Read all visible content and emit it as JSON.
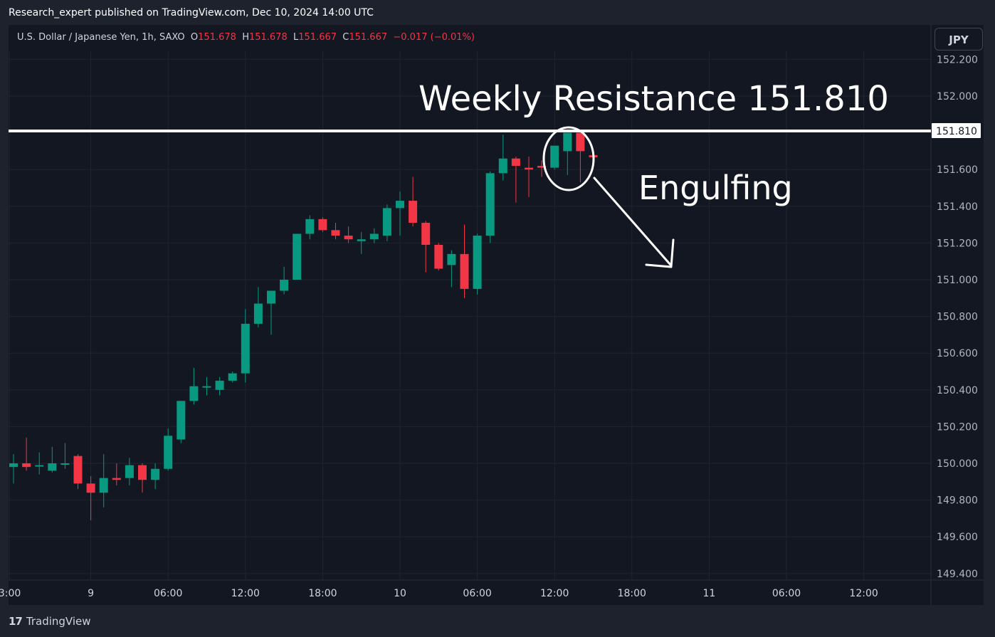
{
  "banner": "Research_expert published on TradingView.com, Dec 10, 2024 14:00 UTC",
  "legend": {
    "symbol": "U.S. Dollar / Japanese Yen, 1h, SAXO",
    "o_label": "O",
    "o_value": "151.678",
    "h_label": "H",
    "h_value": "151.678",
    "l_label": "L",
    "l_value": "151.667",
    "c_label": "C",
    "c_value": "151.667",
    "change": "−0.017 (−0.01%)"
  },
  "currency_button": "JPY",
  "footer": {
    "logo_mark": "17",
    "brand": "TradingView"
  },
  "colors": {
    "up": "#089981",
    "down": "#f23645",
    "background": "#131722",
    "grid": "#1f2430",
    "axis_text": "#b2b5be",
    "annotation": "#ffffff"
  },
  "chart_data": {
    "type": "candlestick",
    "y_axis": {
      "range": [
        149.35,
        152.25
      ],
      "ticks": [
        "149.400",
        "149.600",
        "149.800",
        "150.000",
        "150.200",
        "150.400",
        "150.600",
        "150.800",
        "151.000",
        "151.200",
        "151.400",
        "151.600",
        "152.000",
        "152.200"
      ],
      "position": "right"
    },
    "x_axis": {
      "ticks": [
        {
          "label": "3:00",
          "index": -0.3
        },
        {
          "label": "9",
          "index": 6
        },
        {
          "label": "06:00",
          "index": 12
        },
        {
          "label": "12:00",
          "index": 18
        },
        {
          "label": "18:00",
          "index": 24
        },
        {
          "label": "10",
          "index": 30
        },
        {
          "label": "06:00",
          "index": 36
        },
        {
          "label": "12:00",
          "index": 42
        },
        {
          "label": "18:00",
          "index": 48
        },
        {
          "label": "11",
          "index": 54
        },
        {
          "label": "06:00",
          "index": 60
        },
        {
          "label": "12:00",
          "index": 66
        }
      ]
    },
    "candles": [
      {
        "o": 149.98,
        "h": 150.05,
        "l": 149.89,
        "c": 150.0
      },
      {
        "o": 150.0,
        "h": 150.14,
        "l": 149.96,
        "c": 149.98
      },
      {
        "o": 149.99,
        "h": 150.06,
        "l": 149.94,
        "c": 149.99
      },
      {
        "o": 149.96,
        "h": 150.09,
        "l": 149.95,
        "c": 150.0
      },
      {
        "o": 150.0,
        "h": 150.11,
        "l": 149.97,
        "c": 150.0
      },
      {
        "o": 150.04,
        "h": 150.05,
        "l": 149.86,
        "c": 149.89
      },
      {
        "o": 149.89,
        "h": 149.93,
        "l": 149.69,
        "c": 149.84
      },
      {
        "o": 149.84,
        "h": 150.05,
        "l": 149.76,
        "c": 149.92
      },
      {
        "o": 149.92,
        "h": 150.0,
        "l": 149.88,
        "c": 149.91
      },
      {
        "o": 149.92,
        "h": 150.03,
        "l": 149.88,
        "c": 149.99
      },
      {
        "o": 149.99,
        "h": 150.0,
        "l": 149.84,
        "c": 149.91
      },
      {
        "o": 149.91,
        "h": 150.0,
        "l": 149.86,
        "c": 149.97
      },
      {
        "o": 149.97,
        "h": 150.19,
        "l": 149.96,
        "c": 150.15
      },
      {
        "o": 150.13,
        "h": 150.34,
        "l": 150.11,
        "c": 150.34
      },
      {
        "o": 150.34,
        "h": 150.52,
        "l": 150.32,
        "c": 150.42
      },
      {
        "o": 150.42,
        "h": 150.47,
        "l": 150.37,
        "c": 150.42
      },
      {
        "o": 150.4,
        "h": 150.47,
        "l": 150.37,
        "c": 150.45
      },
      {
        "o": 150.45,
        "h": 150.5,
        "l": 150.44,
        "c": 150.49
      },
      {
        "o": 150.49,
        "h": 150.84,
        "l": 150.44,
        "c": 150.76
      },
      {
        "o": 150.76,
        "h": 150.96,
        "l": 150.74,
        "c": 150.87
      },
      {
        "o": 150.87,
        "h": 150.94,
        "l": 150.7,
        "c": 150.94
      },
      {
        "o": 150.94,
        "h": 151.07,
        "l": 150.92,
        "c": 151.0
      },
      {
        "o": 151.0,
        "h": 151.25,
        "l": 151.0,
        "c": 151.25
      },
      {
        "o": 151.25,
        "h": 151.35,
        "l": 151.22,
        "c": 151.33
      },
      {
        "o": 151.33,
        "h": 151.34,
        "l": 151.26,
        "c": 151.27
      },
      {
        "o": 151.27,
        "h": 151.31,
        "l": 151.22,
        "c": 151.24
      },
      {
        "o": 151.24,
        "h": 151.29,
        "l": 151.2,
        "c": 151.22
      },
      {
        "o": 151.21,
        "h": 151.26,
        "l": 151.14,
        "c": 151.22
      },
      {
        "o": 151.22,
        "h": 151.28,
        "l": 151.2,
        "c": 151.25
      },
      {
        "o": 151.24,
        "h": 151.41,
        "l": 151.21,
        "c": 151.39
      },
      {
        "o": 151.39,
        "h": 151.48,
        "l": 151.24,
        "c": 151.43
      },
      {
        "o": 151.43,
        "h": 151.56,
        "l": 151.29,
        "c": 151.31
      },
      {
        "o": 151.31,
        "h": 151.32,
        "l": 151.04,
        "c": 151.19
      },
      {
        "o": 151.19,
        "h": 151.2,
        "l": 151.05,
        "c": 151.06
      },
      {
        "o": 151.08,
        "h": 151.16,
        "l": 150.96,
        "c": 151.14
      },
      {
        "o": 151.14,
        "h": 151.3,
        "l": 150.9,
        "c": 150.95
      },
      {
        "o": 150.95,
        "h": 151.25,
        "l": 150.92,
        "c": 151.24
      },
      {
        "o": 151.24,
        "h": 151.59,
        "l": 151.2,
        "c": 151.58
      },
      {
        "o": 151.58,
        "h": 151.79,
        "l": 151.54,
        "c": 151.66
      },
      {
        "o": 151.66,
        "h": 151.67,
        "l": 151.42,
        "c": 151.62
      },
      {
        "o": 151.61,
        "h": 151.67,
        "l": 151.45,
        "c": 151.6
      },
      {
        "o": 151.62,
        "h": 151.65,
        "l": 151.56,
        "c": 151.61
      },
      {
        "o": 151.61,
        "h": 151.72,
        "l": 151.6,
        "c": 151.73
      },
      {
        "o": 151.7,
        "h": 151.8,
        "l": 151.57,
        "c": 151.8
      },
      {
        "o": 151.8,
        "h": 151.81,
        "l": 151.53,
        "c": 151.7
      },
      {
        "o": 151.678,
        "h": 151.678,
        "l": 151.667,
        "c": 151.667
      }
    ],
    "annotations": {
      "resistance_label": "Weekly Resistance 151.810",
      "resistance_price": 151.81,
      "resistance_tag": "151.810",
      "pattern_label": "Engulfing"
    }
  }
}
